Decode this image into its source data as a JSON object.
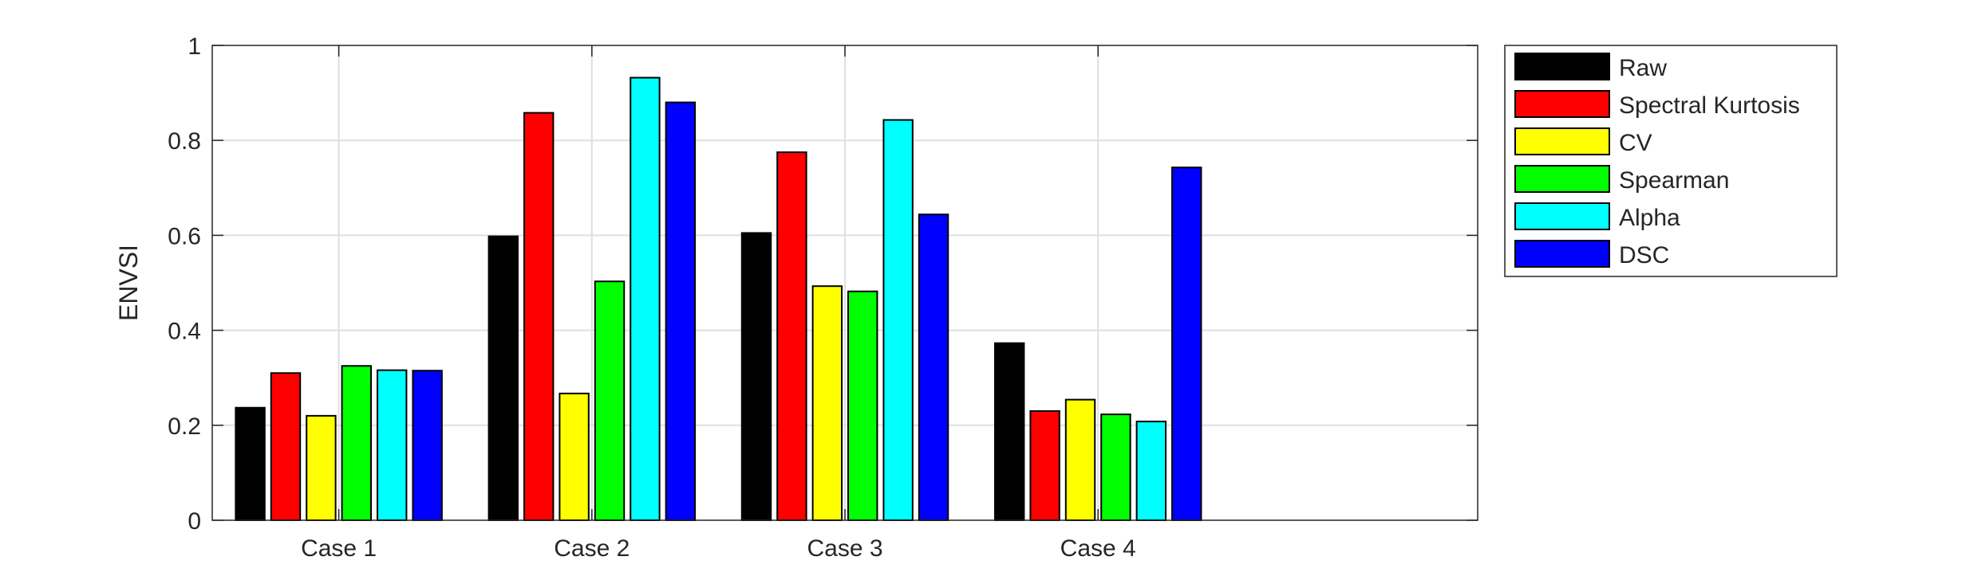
{
  "chart_data": {
    "type": "bar",
    "categories": [
      "Case 1",
      "Case 2",
      "Case 3",
      "Case 4"
    ],
    "series": [
      {
        "name": "Raw",
        "color": "#000000",
        "values": [
          0.237,
          0.598,
          0.605,
          0.373
        ]
      },
      {
        "name": "Spectral Kurtosis",
        "color": "#ff0000",
        "values": [
          0.31,
          0.858,
          0.775,
          0.23
        ]
      },
      {
        "name": "CV",
        "color": "#ffff00",
        "values": [
          0.22,
          0.267,
          0.493,
          0.254
        ]
      },
      {
        "name": "Spearman",
        "color": "#00ff00",
        "values": [
          0.325,
          0.503,
          0.482,
          0.223
        ]
      },
      {
        "name": "Alpha",
        "color": "#00ffff",
        "values": [
          0.316,
          0.932,
          0.843,
          0.208
        ]
      },
      {
        "name": "DSC",
        "color": "#0000ff",
        "values": [
          0.315,
          0.88,
          0.644,
          0.743
        ]
      }
    ],
    "xlabel": "",
    "ylabel": "ENVSI",
    "ylim": [
      0,
      1
    ],
    "yticks": [
      0,
      0.2,
      0.4,
      0.6,
      0.8,
      1
    ],
    "ytick_labels": [
      "0",
      "0.2",
      "0.4",
      "0.6",
      "0.8",
      "1"
    ],
    "grid": true,
    "legend_position": "outside-right"
  }
}
